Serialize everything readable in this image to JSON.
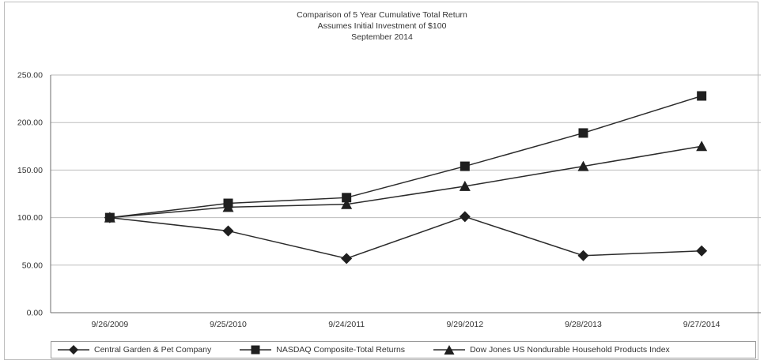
{
  "chart_data": {
    "type": "line",
    "title": "Comparison of 5 Year Cumulative Total Return",
    "subtitle_lines": [
      "Assumes Initial Investment of $100",
      "September 2014"
    ],
    "categories": [
      "9/26/2009",
      "9/25/2010",
      "9/24/2011",
      "9/29/2012",
      "9/28/2013",
      "9/27/2014"
    ],
    "ylim": [
      0,
      250
    ],
    "yticks": [
      "0.00",
      "50.00",
      "100.00",
      "150.00",
      "200.00",
      "250.00"
    ],
    "grid": true,
    "legend_position": "bottom",
    "series": [
      {
        "name": "Central Garden & Pet Company",
        "marker": "diamond",
        "values": [
          100,
          86,
          57,
          101,
          60,
          65
        ]
      },
      {
        "name": "NASDAQ Composite-Total Returns",
        "marker": "square",
        "values": [
          100,
          115,
          121,
          154,
          189,
          228
        ]
      },
      {
        "name": "Dow Jones US Nondurable Household Products Index",
        "marker": "triangle",
        "values": [
          100,
          111,
          114,
          133,
          154,
          175
        ]
      }
    ],
    "colors": {
      "line": "#2b2b2b",
      "grid": "#bdbdbd",
      "axis": "#6b6b6b"
    }
  }
}
